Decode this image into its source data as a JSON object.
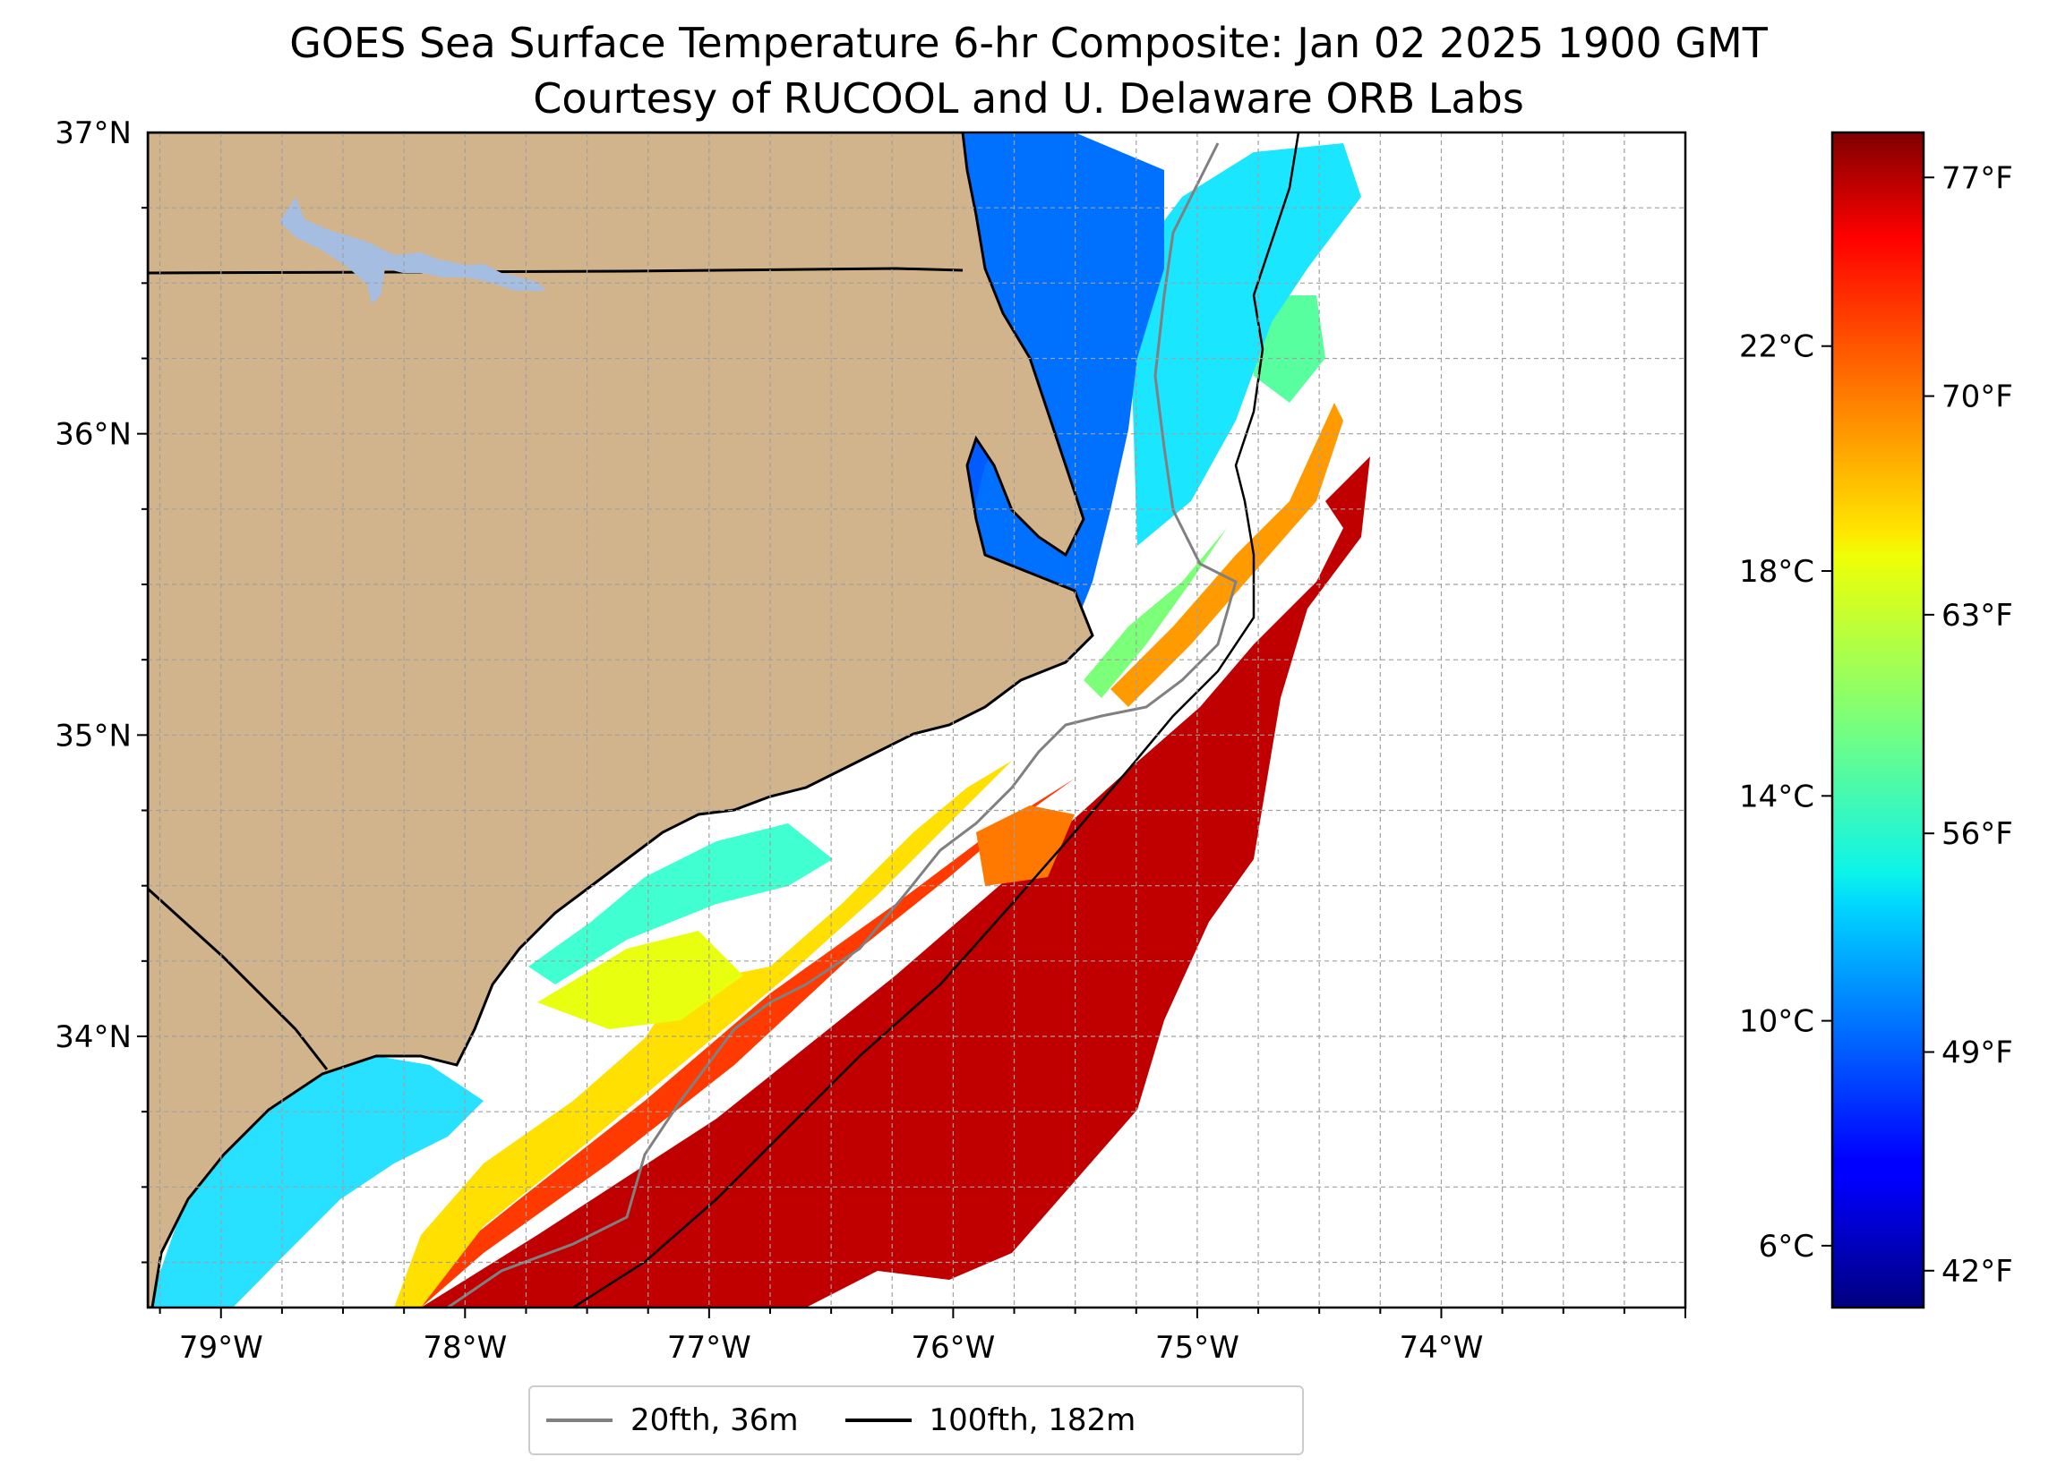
{
  "title": "GOES Sea Surface Temperature 6-hr Composite: Jan 02 2025 1900 GMT",
  "subtitle": "Courtesy of RUCOOL and U. Delaware ORB Labs",
  "map": {
    "lon_range": [
      -79.3,
      -73.0
    ],
    "lat_range": [
      33.1,
      37.0
    ],
    "lat_ticks": [
      {
        "value": 37,
        "label": "37°N"
      },
      {
        "value": 36,
        "label": "36°N"
      },
      {
        "value": 35,
        "label": "35°N"
      },
      {
        "value": 34,
        "label": "34°N"
      }
    ],
    "lon_ticks": [
      {
        "value": -79,
        "label": "79°W"
      },
      {
        "value": -78,
        "label": "78°W"
      },
      {
        "value": -77,
        "label": "77°W"
      },
      {
        "value": -76,
        "label": "76°W"
      },
      {
        "value": -75,
        "label": "75°W"
      },
      {
        "value": -74,
        "label": "74°W"
      }
    ],
    "land_color": "#d2b48c",
    "grid": true
  },
  "colorbar": {
    "colormap": "jet",
    "range_c": [
      4.9,
      25.8
    ],
    "celsius_ticks": [
      {
        "value": 6,
        "label": "6°C"
      },
      {
        "value": 10,
        "label": "10°C"
      },
      {
        "value": 14,
        "label": "14°C"
      },
      {
        "value": 18,
        "label": "18°C"
      },
      {
        "value": 22,
        "label": "22°C"
      }
    ],
    "fahrenheit_ticks": [
      {
        "value": 42,
        "label": "42°F"
      },
      {
        "value": 49,
        "label": "49°F"
      },
      {
        "value": 56,
        "label": "56°F"
      },
      {
        "value": 63,
        "label": "63°F"
      },
      {
        "value": 70,
        "label": "70°F"
      },
      {
        "value": 77,
        "label": "77°F"
      }
    ]
  },
  "legend": {
    "items": [
      {
        "label": "20fth, 36m",
        "color": "#808080"
      },
      {
        "label": "100fth, 182m",
        "color": "#000000"
      }
    ]
  }
}
